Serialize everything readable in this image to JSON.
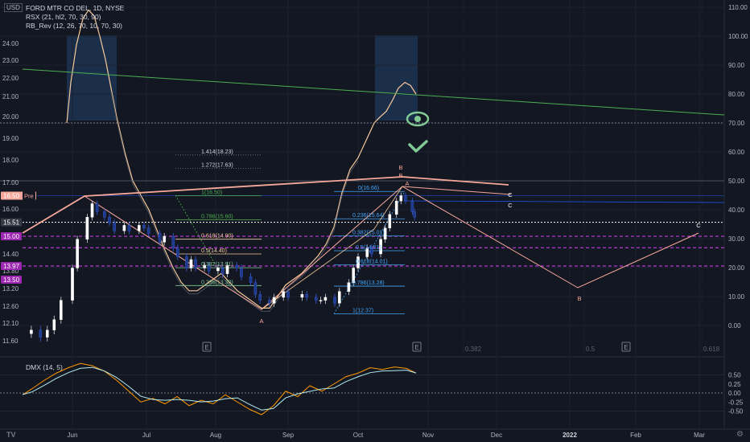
{
  "header": {
    "currency": "USD",
    "symbol_line": "FORD MTR CO DEL, 1D, NYSE",
    "indicator1": "RSX (21, hl2, 70, 30, 90)",
    "indicator2": "RB_Rev (12, 26, 70, 10, 70, 30)",
    "indicator3": "DMX (14, 5)"
  },
  "chart_data": {
    "type": "candlestick",
    "symbol": "FORD MTR CO DEL",
    "interval": "1D",
    "exchange": "NYSE",
    "x_ticks": [
      "Jun",
      "Jul",
      "Aug",
      "Sep",
      "Oct",
      "Nov",
      "Dec",
      "2022",
      "Feb",
      "Mar"
    ],
    "price_axis_left": {
      "ticks": [
        11.6,
        12.1,
        12.6,
        13.2,
        13.8,
        14.4,
        15.0,
        16.0,
        17.0,
        18.0,
        19.0,
        20.0,
        21.0,
        22.0,
        23.0,
        24.0
      ],
      "labels": [
        "11.60",
        "12.10",
        "12.60",
        "13.20",
        "13.80",
        "14.40",
        "15.00",
        "16.00",
        "17.00",
        "18.00",
        "19.00",
        "20.00",
        "21.00",
        "22.00",
        "23.00",
        "24.00"
      ],
      "badges": [
        {
          "value": 16.5,
          "text": "16.50",
          "tag": "Pre",
          "color": "#f7a89b"
        },
        {
          "value": 15.51,
          "text": "15.51",
          "color": "#363a45"
        },
        {
          "value": 15.0,
          "text": "15.00",
          "color": "#9c27b0"
        },
        {
          "value": 13.5,
          "text": "13.50",
          "color": "#9c27b0"
        },
        {
          "value": 13.97,
          "text": "13.97",
          "color": "#9c27b0"
        }
      ]
    },
    "oscillator_axis_right": {
      "ticks": [
        0,
        10,
        20,
        30,
        40,
        50,
        60,
        70,
        80,
        90,
        100,
        110
      ],
      "labels": [
        "0.00",
        "10.00",
        "20.00",
        "30.00",
        "40.00",
        "50.00",
        "60.00",
        "70.00",
        "80.00",
        "90.00",
        "100.00",
        "110.00"
      ]
    },
    "dmx_axis": {
      "ticks": [
        0.5,
        0.25,
        0,
        -0.25,
        -0.5
      ],
      "labels": [
        "0.50",
        "0.25",
        "0.00",
        "-0.25",
        "-0.50"
      ]
    },
    "fib_extensions": [
      {
        "text": "1.414(18.23)",
        "price": 18.23
      },
      {
        "text": "1.272(17.63)",
        "price": 17.63
      },
      {
        "text": "1(16.50)",
        "price": 16.5
      },
      {
        "text": "0.786(15.60)",
        "price": 15.6
      },
      {
        "text": "0.618(14.90)",
        "price": 14.9
      },
      {
        "text": "0.5(14.40)",
        "price": 14.4
      },
      {
        "text": "0.382(13.91)",
        "price": 13.91
      },
      {
        "text": "0.236(13.30)",
        "price": 13.3
      }
    ],
    "fib_retracements": [
      {
        "text": "0(16.66)",
        "price": 16.66
      },
      {
        "text": "0.236(15.64)",
        "price": 15.64
      },
      {
        "text": "0.382(15.01)",
        "price": 15.01
      },
      {
        "text": "0.5(14.51)",
        "price": 14.51
      },
      {
        "text": "0.618(14.01)",
        "price": 14.01
      },
      {
        "text": "0.786(13.28)",
        "price": 13.28
      },
      {
        "text": "1(12.37)",
        "price": 12.37
      }
    ],
    "projection_levels": [
      {
        "text": "0.382"
      },
      {
        "text": "0.5"
      },
      {
        "text": "0.618"
      }
    ],
    "wave_labels": [
      {
        "text": "A"
      },
      {
        "text": "B"
      },
      {
        "text": "B"
      },
      {
        "text": "A"
      },
      {
        "text": "C"
      },
      {
        "text": "C"
      },
      {
        "text": "B"
      },
      {
        "text": "C"
      }
    ],
    "event_marker": "E",
    "signal_icons": [
      "eye-icon",
      "check-icon"
    ],
    "colors": {
      "background": "#131722",
      "bull": "#ffffff",
      "bear": "#1e3a8a",
      "rsx_line": "#f7c99b",
      "trend_line": "#4caf50",
      "zigzag": "#f7a89b",
      "magenta": "#e040fb",
      "fib_blue": "#42a5f5",
      "signal_green": "#81c995"
    }
  }
}
